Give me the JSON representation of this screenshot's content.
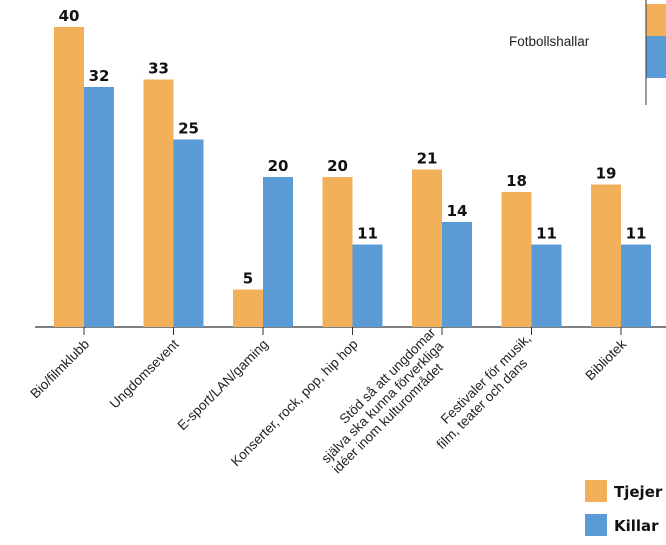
{
  "chart_data": {
    "type": "bar",
    "categories": [
      [
        "Bio/filmklubb"
      ],
      [
        "Ungdomsevent"
      ],
      [
        "E-sport/LAN/gaming"
      ],
      [
        "Konserter, rock, pop, hip hop"
      ],
      [
        "Stöd så att ungdomar",
        "själva ska kunna förverkliga",
        "idéer inom kulturområdet"
      ],
      [
        "Festivaler för musik,",
        "film, teater och dans"
      ],
      [
        "Bibliotek"
      ]
    ],
    "series": [
      {
        "name": "Tjejer",
        "color": "#f2b05a",
        "values": [
          40,
          33,
          5,
          20,
          21,
          18,
          19
        ]
      },
      {
        "name": "Killar",
        "color": "#5b9bd5",
        "values": [
          32,
          25,
          20,
          11,
          14,
          11,
          11
        ]
      }
    ],
    "ylim": [
      0,
      40
    ],
    "grid": false,
    "legend_position": "bottom-right",
    "partial_category": {
      "label": "Fotbollshallar",
      "colors": [
        "#f2b05a",
        "#5b9bd5"
      ]
    }
  }
}
